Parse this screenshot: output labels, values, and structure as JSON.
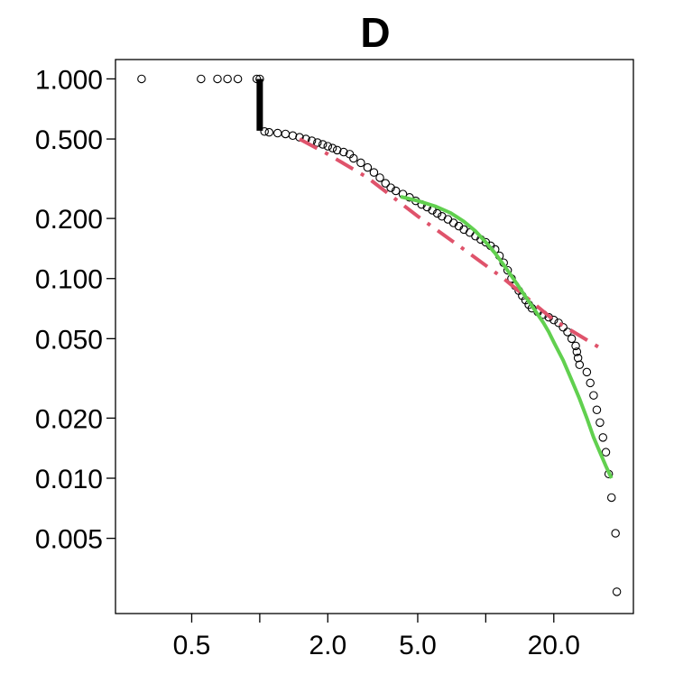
{
  "chart_data": {
    "type": "scatter",
    "title": "D",
    "xlabel": "",
    "ylabel": "",
    "x_scale": "log",
    "y_scale": "log",
    "xlim": [
      0.23,
      45
    ],
    "ylim": [
      0.0021,
      1.25
    ],
    "x_ticks": [
      0.5,
      1.0,
      2.0,
      5.0,
      10.0,
      20.0
    ],
    "x_tick_labels": [
      "0.5",
      "",
      "2.0",
      "5.0",
      "",
      "20.0"
    ],
    "y_ticks": [
      1.0,
      0.5,
      0.2,
      0.1,
      0.05,
      0.02,
      0.01,
      0.005
    ],
    "y_tick_labels": [
      "1.000",
      "0.500",
      "0.200",
      "0.100",
      "0.050",
      "0.020",
      "0.010",
      "0.005"
    ],
    "grid": false,
    "vertical_cluster": {
      "x": 1.0,
      "y_range": [
        0.55,
        1.0
      ]
    },
    "points": [
      [
        0.3,
        1.0
      ],
      [
        0.55,
        1.0
      ],
      [
        0.65,
        1.0
      ],
      [
        0.72,
        1.0
      ],
      [
        0.8,
        1.0
      ],
      [
        0.97,
        1.0
      ],
      [
        1.0,
        1.0
      ],
      [
        1.05,
        0.545
      ],
      [
        1.1,
        0.54
      ],
      [
        1.2,
        0.535
      ],
      [
        1.3,
        0.53
      ],
      [
        1.4,
        0.52
      ],
      [
        1.5,
        0.51
      ],
      [
        1.6,
        0.5
      ],
      [
        1.7,
        0.49
      ],
      [
        1.8,
        0.48
      ],
      [
        1.9,
        0.47
      ],
      [
        2.0,
        0.46
      ],
      [
        2.1,
        0.45
      ],
      [
        2.2,
        0.44
      ],
      [
        2.35,
        0.43
      ],
      [
        2.5,
        0.42
      ],
      [
        2.6,
        0.4
      ],
      [
        2.8,
        0.38
      ],
      [
        3.0,
        0.36
      ],
      [
        3.2,
        0.34
      ],
      [
        3.4,
        0.32
      ],
      [
        3.6,
        0.3
      ],
      [
        3.8,
        0.285
      ],
      [
        4.0,
        0.275
      ],
      [
        4.3,
        0.265
      ],
      [
        4.6,
        0.255
      ],
      [
        4.9,
        0.245
      ],
      [
        5.2,
        0.235
      ],
      [
        5.5,
        0.228
      ],
      [
        5.8,
        0.22
      ],
      [
        6.1,
        0.212
      ],
      [
        6.4,
        0.205
      ],
      [
        6.8,
        0.198
      ],
      [
        7.2,
        0.19
      ],
      [
        7.6,
        0.183
      ],
      [
        8.0,
        0.176
      ],
      [
        8.5,
        0.17
      ],
      [
        9.0,
        0.163
      ],
      [
        9.5,
        0.157
      ],
      [
        10.0,
        0.152
      ],
      [
        10.5,
        0.146
      ],
      [
        11.0,
        0.14
      ],
      [
        11.5,
        0.13
      ],
      [
        12.0,
        0.12
      ],
      [
        12.5,
        0.11
      ],
      [
        13.0,
        0.1
      ],
      [
        13.5,
        0.092
      ],
      [
        14.0,
        0.087
      ],
      [
        14.5,
        0.082
      ],
      [
        15.0,
        0.078
      ],
      [
        15.5,
        0.074
      ],
      [
        16.0,
        0.071
      ],
      [
        17.0,
        0.068
      ],
      [
        18.0,
        0.066
      ],
      [
        19.0,
        0.064
      ],
      [
        20.0,
        0.062
      ],
      [
        21.0,
        0.06
      ],
      [
        22.0,
        0.057
      ],
      [
        23.0,
        0.054
      ],
      [
        24.0,
        0.05
      ],
      [
        25.0,
        0.046
      ],
      [
        25.3,
        0.043
      ],
      [
        25.6,
        0.04
      ],
      [
        26.0,
        0.037
      ],
      [
        28.0,
        0.034
      ],
      [
        29.0,
        0.03
      ],
      [
        30.0,
        0.026
      ],
      [
        31.0,
        0.022
      ],
      [
        32.0,
        0.019
      ],
      [
        33.0,
        0.016
      ],
      [
        34.0,
        0.0135
      ],
      [
        35.0,
        0.0105
      ],
      [
        36.0,
        0.008
      ],
      [
        37.5,
        0.0053
      ],
      [
        38.0,
        0.0027
      ]
    ],
    "series": [
      {
        "style": "dash-dot",
        "color": "#df536b",
        "x": [
          1.5,
          2.0,
          3.0,
          5.0,
          8.0,
          12.0,
          20.0,
          33.0
        ],
        "y": [
          0.5,
          0.42,
          0.32,
          0.205,
          0.14,
          0.1,
          0.062,
          0.044
        ]
      },
      {
        "style": "solid",
        "color": "#61d04f",
        "x": [
          4.2,
          5.0,
          6.0,
          7.0,
          8.0,
          9.0,
          10.0,
          11.0,
          12.0,
          13.0,
          14.0,
          15.0,
          16.0,
          17.0,
          18.0,
          19.0,
          20.0,
          22.0,
          24.0,
          26.0,
          28.0,
          30.0,
          32.0,
          34.0,
          36.0
        ],
        "y": [
          0.257,
          0.245,
          0.23,
          0.213,
          0.193,
          0.173,
          0.152,
          0.134,
          0.117,
          0.103,
          0.091,
          0.081,
          0.073,
          0.066,
          0.06,
          0.054,
          0.048,
          0.039,
          0.031,
          0.025,
          0.02,
          0.016,
          0.0135,
          0.0115,
          0.01
        ]
      }
    ]
  }
}
